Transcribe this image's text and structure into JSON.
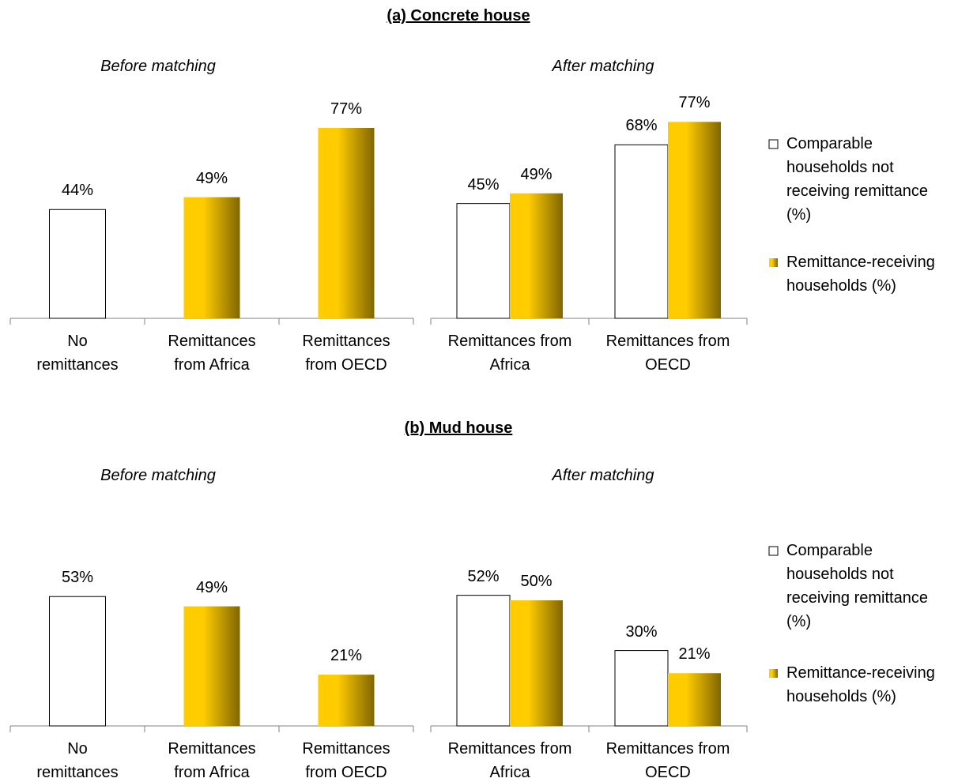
{
  "section_titles": [
    "(a) Concrete house",
    "(b) Mud house"
  ],
  "chart_data": [
    {
      "type": "bar",
      "title": "Before matching",
      "categories": [
        "No remittances",
        "Remittances from Africa",
        "Remittances from OECD"
      ],
      "series": [
        {
          "colors": [
            "#FFFFFF",
            "#FFCC00",
            "#FFCC00"
          ],
          "values": [
            44,
            49,
            77
          ],
          "value_labels": [
            "44%",
            "49%",
            "77%"
          ]
        }
      ],
      "ylim": [
        0,
        100
      ]
    },
    {
      "type": "bar",
      "title": "After matching",
      "categories": [
        "Remittances from Africa",
        "Remittances from OECD"
      ],
      "series": [
        {
          "name": "Comparable households not receiving remittance (%)",
          "color": "#FFFFFF",
          "values": [
            45,
            68
          ],
          "value_labels": [
            "45%",
            "68%"
          ]
        },
        {
          "name": "Remittance-receiving households (%)",
          "color": "#FFCC00",
          "values": [
            49,
            77
          ],
          "value_labels": [
            "49%",
            "77%"
          ]
        }
      ],
      "ylim": [
        0,
        100
      ],
      "legend": "right"
    },
    {
      "type": "bar",
      "title": "Before matching",
      "categories": [
        "No remittances",
        "Remittances from Africa",
        "Remittances from OECD"
      ],
      "series": [
        {
          "colors": [
            "#FFFFFF",
            "#FFCC00",
            "#FFCC00"
          ],
          "values": [
            53,
            49,
            21
          ],
          "value_labels": [
            "53%",
            "49%",
            "21%"
          ]
        }
      ],
      "ylim": [
        0,
        100
      ]
    },
    {
      "type": "bar",
      "title": "After matching",
      "categories": [
        "Remittances from Africa",
        "Remittances from OECD"
      ],
      "series": [
        {
          "name": "Comparable households not receiving remittance (%)",
          "color": "#FFFFFF",
          "values": [
            52,
            30
          ],
          "value_labels": [
            "52%",
            "30%"
          ]
        },
        {
          "name": "Remittance-receiving households (%)",
          "color": "#FFCC00",
          "values": [
            50,
            21
          ],
          "value_labels": [
            "50%",
            "21%"
          ]
        }
      ],
      "ylim": [
        0,
        100
      ],
      "legend": "right"
    }
  ]
}
